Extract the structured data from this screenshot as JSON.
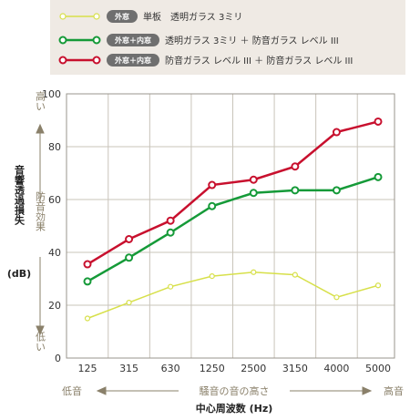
{
  "chart_data": {
    "type": "line",
    "x": [
      "125",
      "315",
      "630",
      "1250",
      "2500",
      "3150",
      "4000",
      "5000"
    ],
    "ylim": [
      0,
      100
    ],
    "yticks": [
      0,
      20,
      40,
      60,
      80,
      100
    ],
    "grid": true,
    "legend_position": "top",
    "series": [
      {
        "badge": "外窓",
        "name": "単板　透明ガラス 3ミリ",
        "color": "#d7e04a",
        "values": [
          15,
          21,
          27,
          31,
          32.5,
          31.5,
          23,
          27.5
        ]
      },
      {
        "badge": "外窓＋内窓",
        "name": "透明ガラス 3ミリ ＋ 防音ガラス レベル III",
        "color": "#159a38",
        "values": [
          29,
          38,
          47.5,
          57.5,
          62.5,
          63.5,
          63.5,
          68.5
        ]
      },
      {
        "badge": "外窓＋内窓",
        "name": "防音ガラス レベル III ＋ 防音ガラス レベル III",
        "color": "#c8102e",
        "values": [
          35.5,
          45,
          52,
          65.5,
          67.5,
          72.5,
          85.5,
          89.5
        ]
      }
    ],
    "ylabel": "音響透過損失",
    "ylabel_unit": "(dB)",
    "y_high": "高い",
    "y_mid": "防音効果",
    "y_low": "低い",
    "x_low": "低音",
    "x_mid": "騒音の音の高さ",
    "x_high": "高音",
    "xlabel": "中心周波数 (Hz)"
  }
}
